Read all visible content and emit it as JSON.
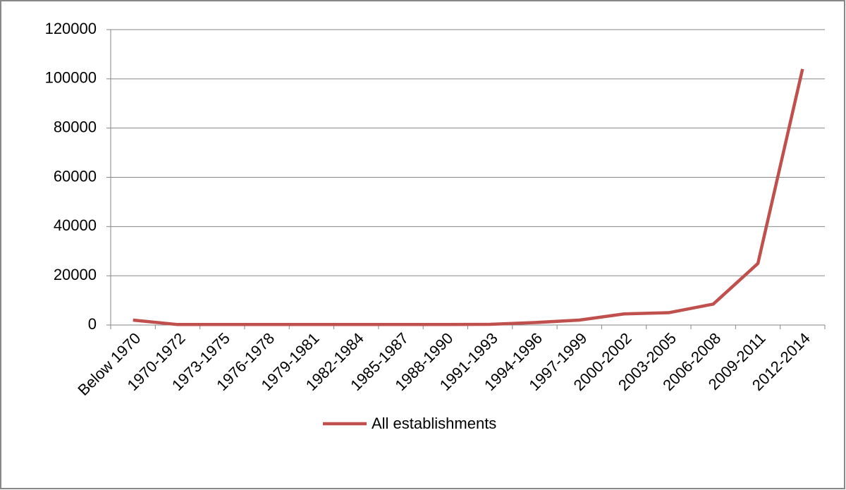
{
  "chart_data": {
    "type": "line",
    "categories": [
      "Below 1970",
      "1970-1972",
      "1973-1975",
      "1976-1978",
      "1979-1981",
      "1982-1984",
      "1985-1987",
      "1988-1990",
      "1991-1993",
      "1994-1996",
      "1997-1999",
      "2000-2002",
      "2003-2005",
      "2006-2008",
      "2009-2011",
      "2012-2014"
    ],
    "series": [
      {
        "name": "All establishments",
        "color": "#c0504d",
        "values": [
          2000,
          200,
          200,
          200,
          200,
          200,
          200,
          200,
          300,
          1000,
          2000,
          4500,
          5000,
          8500,
          25000,
          104000
        ]
      }
    ],
    "ylim": [
      0,
      120000
    ],
    "yticks": [
      0,
      20000,
      40000,
      60000,
      80000,
      100000,
      120000
    ],
    "grid": true,
    "legend": "bottom"
  }
}
